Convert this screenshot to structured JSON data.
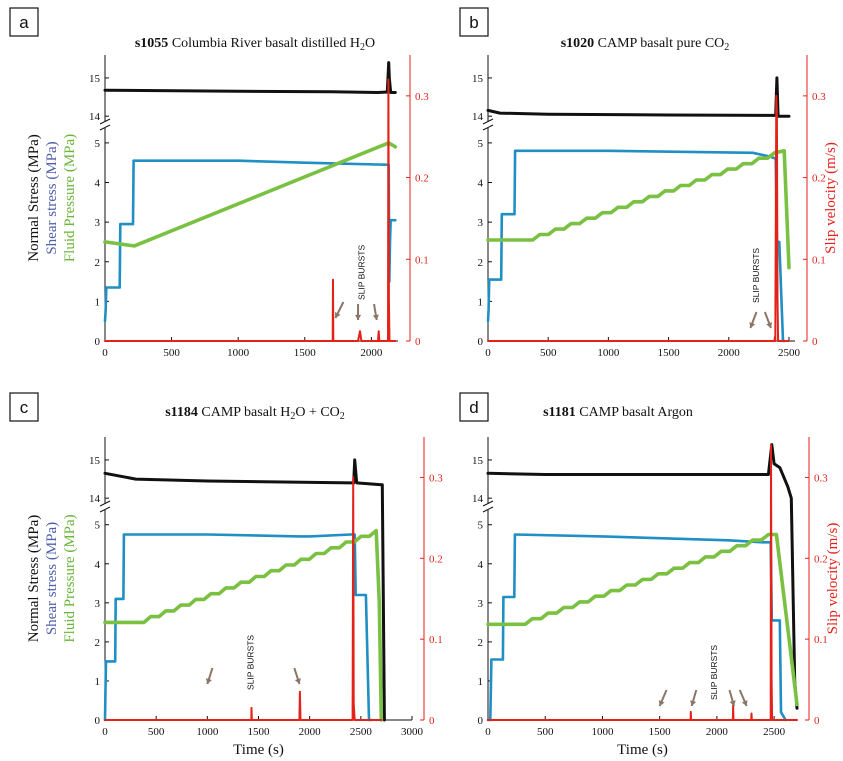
{
  "chart_data": [
    {
      "type": "line",
      "panel": "a",
      "title_id": "s1055",
      "title_text": "Columbia River basalt distilled H",
      "title_sub": "2",
      "title_tail": "O",
      "ylabel_black": "Normal Stress (MPa)",
      "ylabel_blue": "Shear stress (MPa)",
      "ylabel_green": "Fluid Pressure (MPa)",
      "ylabel_right": "",
      "xlabel": "",
      "annotation": "SLIP BURSTS",
      "xlim": [
        0,
        2200
      ],
      "xticks": [
        "0",
        "500",
        "1000",
        "1500",
        "2000"
      ],
      "xtick_values": [
        0,
        500,
        1000,
        1500,
        2000
      ],
      "ylim_lower": [
        0,
        5.3
      ],
      "yticks_lower": [
        "0",
        "1",
        "2",
        "3",
        "4",
        "5"
      ],
      "ylim_upper": [
        13.9,
        15.6
      ],
      "yticks_upper": [
        "14",
        "15"
      ],
      "ytick_upper_values": [
        14,
        15
      ],
      "ylim_right": [
        0,
        0.35
      ],
      "yticks_right": [
        "0",
        "0.1",
        "0.2",
        "0.3"
      ],
      "ytick_right_values": [
        0,
        0.1,
        0.2,
        0.3
      ],
      "series": [
        {
          "color": "#111111",
          "axis": "upper",
          "x": [
            0,
            400,
            1000,
            1700,
            2050,
            2100,
            2120,
            2130,
            2135,
            2145,
            2180
          ],
          "y": [
            14.68,
            14.67,
            14.65,
            14.64,
            14.62,
            14.63,
            14.63,
            15.4,
            15.0,
            14.62,
            14.62
          ]
        },
        {
          "color": "#1f8fc4",
          "axis": "lower",
          "x": [
            0,
            5,
            10,
            110,
            115,
            210,
            215,
            1000,
            1500,
            2100,
            2130,
            2135,
            2140,
            2145,
            2180
          ],
          "y": [
            0.5,
            0.8,
            1.35,
            1.35,
            2.95,
            2.95,
            4.55,
            4.55,
            4.5,
            4.45,
            4.45,
            1.5,
            2.5,
            3.05,
            3.05
          ]
        },
        {
          "color": "#7ac143",
          "axis": "lower",
          "stepped": true,
          "x": [
            0,
            220,
            2130,
            2180
          ],
          "y": [
            2.5,
            2.4,
            5.0,
            4.9
          ]
        },
        {
          "color": "#e32219",
          "axis": "right",
          "x": [
            0,
            1710,
            1712,
            1714,
            1900,
            1915,
            1925,
            2050,
            2055,
            2060,
            2125,
            2128,
            2132,
            2136,
            2180
          ],
          "y": [
            0,
            0,
            0.075,
            0,
            0,
            0.012,
            0,
            0,
            0.012,
            0,
            0,
            0.32,
            0.05,
            0,
            0
          ]
        }
      ]
    },
    {
      "type": "line",
      "panel": "b",
      "title_id": "s1020",
      "title_text": "CAMP  basalt  pure  CO",
      "title_sub": "2",
      "title_tail": "",
      "ylabel_black": "",
      "ylabel_blue": "",
      "ylabel_green": "",
      "ylabel_right": "Slip velocity (m/s)",
      "xlabel": "",
      "annotation": "SLIP BURSTS",
      "xlim": [
        0,
        2550
      ],
      "xticks": [
        "0",
        "500",
        "1000",
        "1500",
        "2000",
        "2500"
      ],
      "xtick_values": [
        0,
        500,
        1000,
        1500,
        2000,
        2500
      ],
      "ylim_lower": [
        0,
        5.3
      ],
      "yticks_lower": [
        "0",
        "1",
        "2",
        "3",
        "4",
        "5"
      ],
      "ylim_upper": [
        13.9,
        15.6
      ],
      "yticks_upper": [
        "14",
        "15"
      ],
      "ytick_upper_values": [
        14,
        15
      ],
      "ylim_right": [
        0,
        0.35
      ],
      "yticks_right": [
        "0",
        "0.1",
        "0.2",
        "0.3"
      ],
      "ytick_right_values": [
        0,
        0.1,
        0.2,
        0.3
      ],
      "series": [
        {
          "color": "#111111",
          "axis": "upper",
          "x": [
            0,
            100,
            500,
            1500,
            2350,
            2390,
            2400,
            2410,
            2430,
            2500
          ],
          "y": [
            14.15,
            14.08,
            14.05,
            14.03,
            14.02,
            14.02,
            15.0,
            14.0,
            14.0,
            14.0
          ]
        },
        {
          "color": "#1f8fc4",
          "axis": "lower",
          "x": [
            0,
            5,
            10,
            110,
            115,
            220,
            225,
            1000,
            2200,
            2350,
            2390,
            2400,
            2420,
            2450,
            2460
          ],
          "y": [
            0.5,
            0.8,
            1.55,
            1.55,
            3.2,
            3.2,
            4.8,
            4.8,
            4.75,
            4.65,
            4.6,
            2.5,
            2.5,
            0,
            0
          ]
        },
        {
          "color": "#7ac143",
          "axis": "lower",
          "stepped": true,
          "x": [
            0,
            300,
            2380,
            2460,
            2500
          ],
          "y": [
            2.55,
            2.55,
            4.75,
            4.8,
            1.85
          ]
        },
        {
          "color": "#e32219",
          "axis": "right",
          "x": [
            0,
            2380,
            2383,
            2386,
            2395,
            2400,
            2405,
            2410,
            2500
          ],
          "y": [
            0,
            0,
            0.005,
            0,
            0.3,
            0.28,
            0.05,
            0,
            0
          ]
        }
      ]
    },
    {
      "type": "line",
      "panel": "c",
      "title_id": "s1184",
      "title_text": "CAMP  basalt  H",
      "title_sub": "2",
      "title_tail": "O + CO",
      "title_sub2": "2",
      "ylabel_black": "Normal Stress (MPa)",
      "ylabel_blue": "Shear stress (MPa)",
      "ylabel_green": "Fluid Pressure (MPa)",
      "ylabel_right": "",
      "xlabel": "Time (s)",
      "annotation": "SLIP BURSTS",
      "xlim": [
        0,
        3000
      ],
      "xticks": [
        "0",
        "500",
        "1000",
        "1500",
        "2000",
        "2500",
        "3000"
      ],
      "xtick_values": [
        0,
        500,
        1000,
        1500,
        2000,
        2500,
        3000
      ],
      "ylim_lower": [
        0,
        5.3
      ],
      "yticks_lower": [
        "0",
        "1",
        "2",
        "3",
        "4",
        "5"
      ],
      "ylim_upper": [
        13.9,
        15.6
      ],
      "yticks_upper": [
        "14",
        "15"
      ],
      "ytick_upper_values": [
        14,
        15
      ],
      "ylim_right": [
        0,
        0.35
      ],
      "yticks_right": [
        "0",
        "0.1",
        "0.2",
        "0.3"
      ],
      "ytick_right_values": [
        0,
        0.1,
        0.2,
        0.3
      ],
      "series": [
        {
          "color": "#111111",
          "axis": "upper",
          "x": [
            0,
            300,
            1000,
            2400,
            2430,
            2440,
            2460,
            2700,
            2710,
            2730
          ],
          "y": [
            14.65,
            14.5,
            14.45,
            14.4,
            14.4,
            15.0,
            14.4,
            14.35,
            14.35,
            0
          ]
        },
        {
          "color": "#1f8fc4",
          "axis": "lower",
          "x": [
            0,
            5,
            10,
            100,
            105,
            180,
            185,
            1000,
            1900,
            2000,
            2400,
            2440,
            2450,
            2550,
            2580,
            2600
          ],
          "y": [
            0,
            0.8,
            1.5,
            1.5,
            3.1,
            3.1,
            4.75,
            4.75,
            4.7,
            4.7,
            4.75,
            4.75,
            3.2,
            3.2,
            0,
            0
          ]
        },
        {
          "color": "#7ac143",
          "axis": "lower",
          "stepped": true,
          "x": [
            0,
            300,
            2450,
            2650,
            2680,
            2700
          ],
          "y": [
            2.5,
            2.5,
            4.85,
            4.85,
            3.0,
            0
          ]
        },
        {
          "color": "#e32219",
          "axis": "right",
          "x": [
            0,
            1430,
            1432,
            1435,
            1900,
            1905,
            1910,
            2420,
            2425,
            2430,
            2440,
            2700
          ],
          "y": [
            0,
            0,
            0.015,
            0,
            0,
            0.035,
            0,
            0,
            0.3,
            0.02,
            0,
            0
          ]
        }
      ]
    },
    {
      "type": "line",
      "panel": "d",
      "title_id": "s1181",
      "title_text": "CAMP  basalt  Argon",
      "title_sub": "",
      "title_tail": "",
      "ylabel_black": "",
      "ylabel_blue": "",
      "ylabel_green": "",
      "ylabel_right": "Slip velocity (m/s)",
      "xlabel": "Time (s)",
      "annotation": "SLIP BURSTS",
      "xlim": [
        0,
        2700
      ],
      "xticks": [
        "0",
        "500",
        "1000",
        "1500",
        "2000",
        "2500"
      ],
      "xtick_values": [
        0,
        500,
        1000,
        1500,
        2000,
        2500
      ],
      "ylim_lower": [
        0,
        5.3
      ],
      "yticks_lower": [
        "0",
        "1",
        "2",
        "3",
        "4",
        "5"
      ],
      "ylim_upper": [
        13.9,
        15.6
      ],
      "yticks_upper": [
        "14",
        "15"
      ],
      "ytick_upper_values": [
        14,
        15
      ],
      "ylim_right": [
        0,
        0.35
      ],
      "yticks_right": [
        "0",
        "0.1",
        "0.2",
        "0.3"
      ],
      "ytick_right_values": [
        0,
        0.1,
        0.2,
        0.3
      ],
      "series": [
        {
          "color": "#111111",
          "axis": "upper",
          "x": [
            0,
            500,
            1500,
            2450,
            2480,
            2500,
            2550,
            2620,
            2650,
            2680,
            2700
          ],
          "y": [
            14.65,
            14.62,
            14.62,
            14.62,
            15.4,
            14.9,
            14.8,
            14.3,
            14.0,
            1.0,
            0.3
          ]
        },
        {
          "color": "#1f8fc4",
          "axis": "lower",
          "x": [
            0,
            20,
            30,
            130,
            135,
            230,
            235,
            1000,
            2100,
            2400,
            2470,
            2480,
            2550,
            2560,
            2600
          ],
          "y": [
            0,
            0,
            1.55,
            1.55,
            3.15,
            3.15,
            4.75,
            4.7,
            4.6,
            4.55,
            4.55,
            2.55,
            2.55,
            0.2,
            0
          ]
        },
        {
          "color": "#7ac143",
          "axis": "lower",
          "stepped": true,
          "x": [
            0,
            250,
            2450,
            2520,
            2700
          ],
          "y": [
            2.45,
            2.45,
            4.75,
            4.75,
            0.4
          ]
        },
        {
          "color": "#e32219",
          "axis": "right",
          "x": [
            0,
            1770,
            1772,
            1775,
            2140,
            2142,
            2145,
            2300,
            2302,
            2305,
            2470,
            2473,
            2478,
            2482,
            2700
          ],
          "y": [
            0,
            0,
            0.01,
            0,
            0,
            0.018,
            0,
            0,
            0.008,
            0,
            0,
            0.34,
            0.05,
            0,
            0
          ]
        }
      ]
    }
  ]
}
